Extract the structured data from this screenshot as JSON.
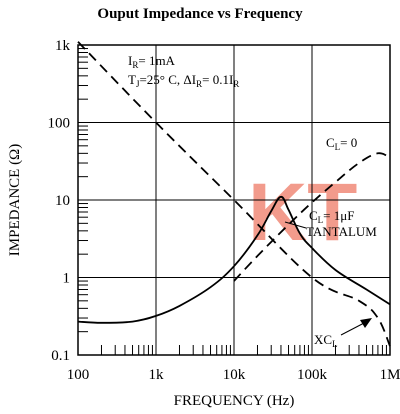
{
  "chart_data": {
    "type": "line",
    "title": "Ouput Impedance vs Frequency",
    "xlabel": "FREQUENCY (Hz)",
    "ylabel": "IMPEDANCE (Ω)",
    "x_scale": "log",
    "y_scale": "log",
    "xlim": [
      100,
      1000000
    ],
    "ylim": [
      0.1,
      1000
    ],
    "x_tick_labels": [
      "100",
      "1k",
      "10k",
      "100k",
      "1M"
    ],
    "y_tick_labels": [
      "0.1",
      "1",
      "10",
      "100",
      "1k"
    ],
    "grid": true,
    "conditions": {
      "ir": {
        "pre": "I",
        "sub": "R",
        "post": "= 1mA"
      },
      "tj": {
        "pre": "T",
        "sub": "J",
        "mid": "=25° C, ΔI",
        "sub2": "R",
        "mid2": "= 0.1I",
        "sub3": "R"
      }
    },
    "annotations": {
      "cl0": {
        "pre": "C",
        "sub": "L",
        "post": "= 0"
      },
      "cl1": {
        "pre": "C",
        "sub": "L",
        "post": "= 1μF"
      },
      "tantalum": "TANTALUM",
      "xcl": {
        "pre": "XC",
        "sub": "L"
      }
    },
    "watermark": "KT",
    "series": [
      {
        "style": "dashed",
        "x": [
          100,
          1000,
          10000,
          100000,
          400000,
          700000,
          1000000
        ],
        "y": [
          1100,
          100,
          10,
          1.0,
          0.5,
          0.3,
          0.13
        ]
      },
      {
        "style": "dashed",
        "x": [
          10000,
          20000,
          50000,
          100000,
          200000,
          400000,
          700000,
          1000000
        ],
        "y": [
          0.9,
          1.9,
          4.8,
          9.3,
          17,
          30,
          40,
          35
        ]
      },
      {
        "style": "solid",
        "x": [
          100,
          200,
          500,
          1000,
          2000,
          5000,
          10000,
          20000,
          30000,
          40000,
          50000,
          70000,
          100000,
          200000,
          500000,
          1000000
        ],
        "y": [
          0.27,
          0.26,
          0.27,
          0.32,
          0.43,
          0.75,
          1.4,
          3.5,
          7.2,
          11,
          7.5,
          3.7,
          2.4,
          1.25,
          0.7,
          0.45
        ]
      }
    ]
  }
}
